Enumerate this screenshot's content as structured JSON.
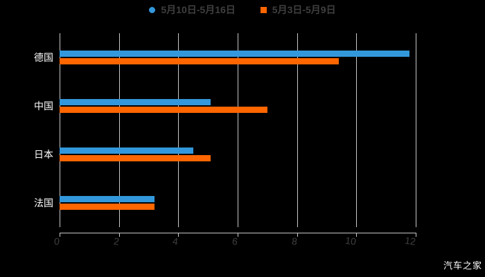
{
  "watermark": "汽车之家",
  "colors": {
    "background": "#000000",
    "axis_line": "#c8c8c8",
    "grid_line": "#c8c8c8",
    "tick_text": "#3f3f3f",
    "legend_text": "#3f3f3f",
    "category_text": "#ffffff",
    "series_blue": "#3398db",
    "series_orange": "#ff6600"
  },
  "chart_data": {
    "type": "bar",
    "orientation": "horizontal",
    "title": "",
    "xlabel": "",
    "ylabel": "",
    "categories": [
      "德国",
      "中国",
      "日本",
      "法国"
    ],
    "series": [
      {
        "name": "5月10日-5月16日",
        "color": "#3398db",
        "marker": "circle",
        "values": [
          11.8,
          5.1,
          4.5,
          3.2
        ]
      },
      {
        "name": "5月3日-5月9日",
        "color": "#ff6600",
        "marker": "square",
        "values": [
          9.4,
          7.0,
          5.1,
          3.2
        ]
      }
    ],
    "xlim": [
      0,
      12
    ],
    "xticks": [
      0,
      2,
      4,
      6,
      8,
      10,
      12
    ],
    "grid": true,
    "legend_position": "top"
  }
}
